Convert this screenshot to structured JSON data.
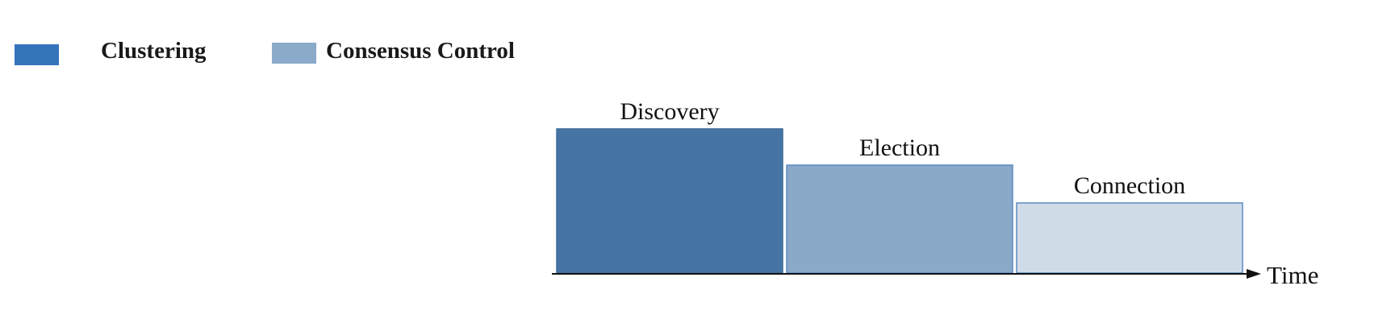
{
  "legend": {
    "items": [
      {
        "label": "Clustering",
        "color": "#3474bb"
      },
      {
        "label": "Consensus Control",
        "color": "#8ba9c9"
      }
    ]
  },
  "timeline": {
    "axis_label": "Time",
    "phases": [
      {
        "label": "Discovery",
        "level": 3,
        "fill": "#4674a5",
        "stroke": "#3f6a98"
      },
      {
        "label": "Election",
        "level": 2,
        "fill": "#8aa8c7",
        "stroke": "#5b8ac4"
      },
      {
        "label": "Connection",
        "level": 1,
        "fill": "#cfdce8",
        "stroke": "#5b8ac4"
      }
    ]
  }
}
